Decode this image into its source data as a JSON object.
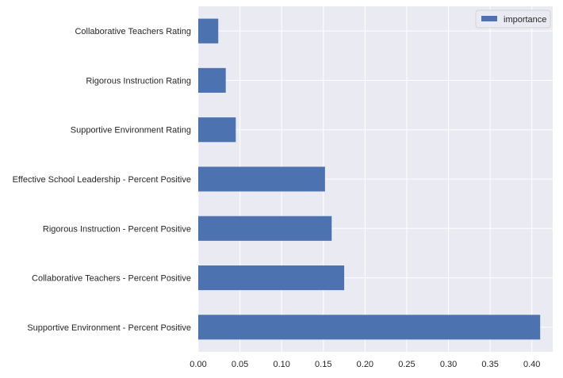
{
  "chart_data": {
    "type": "bar",
    "orientation": "horizontal",
    "categories": [
      "Supportive Environment - Percent Positive",
      "Collaborative Teachers - Percent Positive",
      "Rigorous Instruction - Percent Positive",
      "Effective School Leadership - Percent Positive",
      "Supportive Environment Rating",
      "Rigorous Instruction Rating",
      "Collaborative Teachers Rating"
    ],
    "series": [
      {
        "name": "importance",
        "values": [
          0.41,
          0.175,
          0.16,
          0.152,
          0.045,
          0.033,
          0.024
        ]
      }
    ],
    "xticks": [
      "0.00",
      "0.05",
      "0.10",
      "0.15",
      "0.20",
      "0.25",
      "0.30",
      "0.35",
      "0.40"
    ],
    "xlim": [
      0,
      0.425
    ],
    "title": "",
    "xlabel": "",
    "ylabel": "",
    "grid": true,
    "legend_position": "top-right",
    "colors": {
      "bar": "#4c72b0",
      "background": "#eaeaf2",
      "grid": "#ffffff"
    }
  }
}
